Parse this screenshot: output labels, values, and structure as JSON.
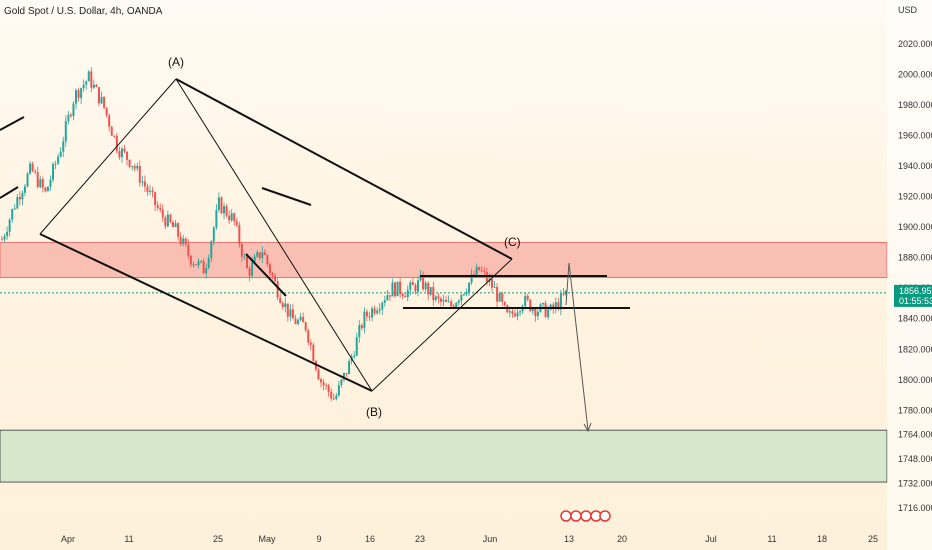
{
  "header": {
    "title": "Gold Spot / U.S. Dollar, 4h, OANDA",
    "currency": "USD"
  },
  "price_tag": {
    "price": "1856.955",
    "countdown": "01:55:53",
    "color": "#089981"
  },
  "colors": {
    "bull": "#26a69a",
    "bear": "#ef5350",
    "resistance_zone": "#f7a8a0",
    "support_zone": "#cfe6c9"
  },
  "chart_data": {
    "type": "candlestick",
    "title": "Gold Spot / U.S. Dollar, 4h, OANDA",
    "ylim": [
      1710,
      2040
    ],
    "y_ticks": [
      2020,
      2000,
      1980,
      1960,
      1940,
      1920,
      1900,
      1880,
      1860,
      1840,
      1820,
      1800,
      1780,
      1764,
      1748,
      1732,
      1716
    ],
    "x_ticks": [
      "Apr",
      "11",
      "25",
      "May",
      "9",
      "16",
      "23",
      "Jun",
      "13",
      "20",
      "Jul",
      "11",
      "18",
      "25"
    ],
    "current_price": 1856.955,
    "resistance_zone": [
      1867,
      1890
    ],
    "support_zone": [
      1733,
      1767
    ],
    "wave_labels": [
      {
        "label": "(A)",
        "value": 1998
      },
      {
        "label": "(B)",
        "value": 1787
      },
      {
        "label": "(C)",
        "value": 1872
      }
    ],
    "pivot_path": [
      1892,
      1918,
      1938,
      1922,
      1950,
      1986,
      1998,
      1980,
      1952,
      1942,
      1925,
      1908,
      1898,
      1880,
      1872,
      1915,
      1905,
      1870,
      1885,
      1860,
      1840,
      1835,
      1800,
      1787,
      1810,
      1840,
      1850,
      1860,
      1858,
      1864,
      1852,
      1848,
      1860,
      1872,
      1860,
      1840,
      1852,
      1846,
      1845,
      1856
    ]
  }
}
